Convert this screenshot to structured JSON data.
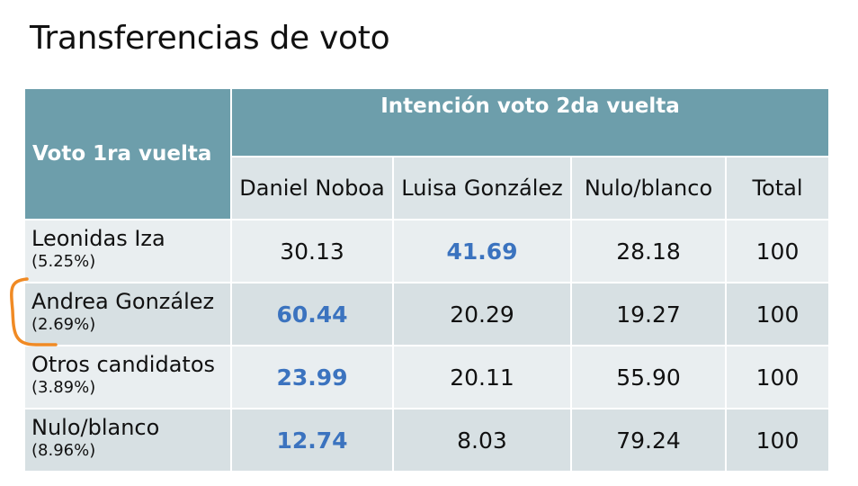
{
  "title": "Transferencias de voto",
  "table": {
    "first_col_header": "Voto 1ra vuelta",
    "group_header": "Intención voto 2da vuelta",
    "columns": [
      "Daniel Noboa",
      "Luisa González",
      "Nulo/blanco",
      "Total"
    ],
    "rows": [
      {
        "name": "Leonidas Iza",
        "pct": "(5.25%)",
        "values": [
          "30.13",
          "41.69",
          "28.18",
          "100"
        ],
        "highlight": 1
      },
      {
        "name": "Andrea González",
        "pct": "(2.69%)",
        "values": [
          "60.44",
          "20.29",
          "19.27",
          "100"
        ],
        "highlight": 0
      },
      {
        "name": "Otros candidatos",
        "pct": "(3.89%)",
        "values": [
          "23.99",
          "20.11",
          "55.90",
          "100"
        ],
        "highlight": 0
      },
      {
        "name": "Nulo/blanco",
        "pct": "(8.96%)",
        "values": [
          "12.74",
          "8.03",
          "79.24",
          "100"
        ],
        "highlight": 0
      }
    ]
  },
  "colors": {
    "header_bg": "#6d9eab",
    "highlight_text": "#3b73bf",
    "annotation": "#f08a24"
  }
}
